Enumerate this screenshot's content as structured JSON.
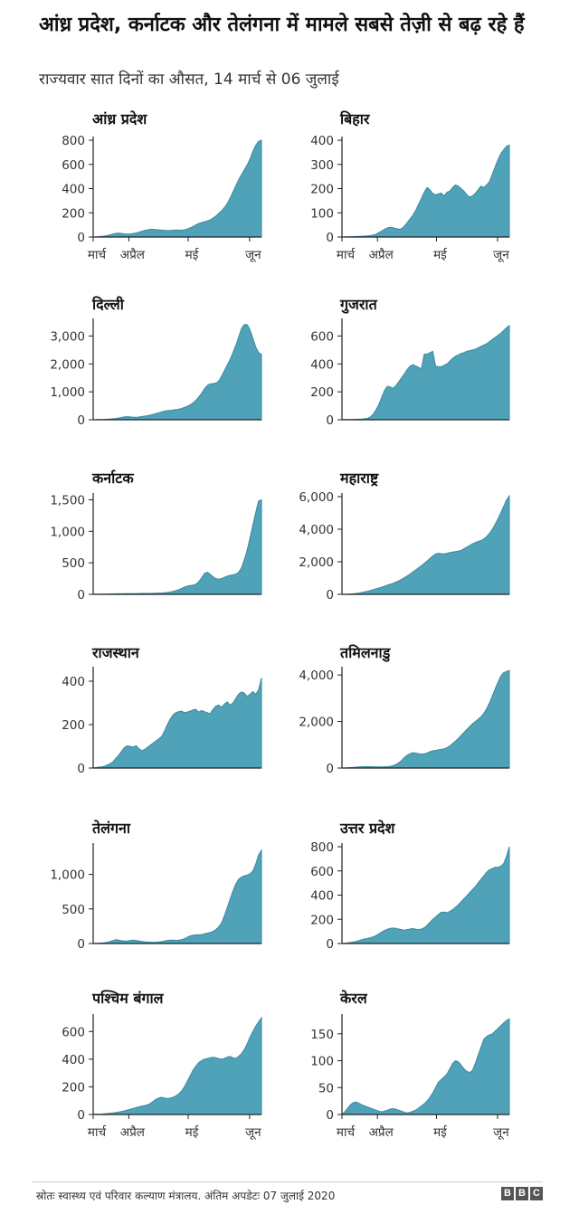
{
  "header": {
    "title": "आंध्र प्रदेश, कर्नाटक और तेलंगना में मामले सबसे तेज़ी से बढ़ रहे हैं",
    "subtitle": "राज्यवार सात दिनों का औसत, 14 मार्च से 06 जुलाई"
  },
  "footer": {
    "source": "स्रोतः स्वास्थ्य एवं परिवार कल्याण मंत्रालय. अंतिम अपडेटः 07 जुलाई 2020",
    "logo_letters": [
      "B",
      "B",
      "C"
    ]
  },
  "colors": {
    "area_fill": "#4fa2b8",
    "area_stroke": "#3a8aa1",
    "axis": "#222222"
  },
  "chart_data": [
    {
      "type": "area",
      "title": "आंध्र प्रदेश",
      "ylim": [
        0,
        800
      ],
      "yticks": [
        {
          "v": 0,
          "label": "0"
        },
        {
          "v": 200,
          "label": "200"
        },
        {
          "v": 400,
          "label": "400"
        },
        {
          "v": 600,
          "label": "600"
        },
        {
          "v": 800,
          "label": "800"
        }
      ],
      "xtick_labels": [
        {
          "day": 0,
          "label": "मार्च"
        },
        {
          "day": 18,
          "label": "अप्रैल"
        },
        {
          "day": 48,
          "label": "मई"
        },
        {
          "day": 79,
          "label": "जून"
        }
      ],
      "series": [
        0,
        1,
        3,
        5,
        8,
        12,
        18,
        25,
        30,
        33,
        30,
        26,
        24,
        25,
        28,
        32,
        38,
        45,
        52,
        58,
        62,
        64,
        62,
        60,
        58,
        56,
        54,
        53,
        55,
        57,
        58,
        56,
        58,
        62,
        70,
        80,
        92,
        105,
        115,
        122,
        128,
        135,
        145,
        160,
        178,
        200,
        222,
        250,
        285,
        330,
        380,
        430,
        480,
        520,
        560,
        600,
        650,
        710,
        760,
        790,
        800
      ]
    },
    {
      "type": "area",
      "title": "बिहार",
      "ylim": [
        0,
        400
      ],
      "yticks": [
        {
          "v": 0,
          "label": "0"
        },
        {
          "v": 100,
          "label": "100"
        },
        {
          "v": 200,
          "label": "200"
        },
        {
          "v": 300,
          "label": "300"
        },
        {
          "v": 400,
          "label": "400"
        }
      ],
      "xtick_labels": [
        {
          "day": 0,
          "label": "मार्च"
        },
        {
          "day": 18,
          "label": "अप्रैल"
        },
        {
          "day": 48,
          "label": "मई"
        },
        {
          "day": 79,
          "label": "जून"
        }
      ],
      "series": [
        0,
        0,
        1,
        1,
        2,
        2,
        3,
        3,
        4,
        5,
        6,
        8,
        12,
        18,
        25,
        32,
        38,
        40,
        38,
        35,
        32,
        34,
        45,
        60,
        75,
        90,
        110,
        135,
        160,
        185,
        205,
        195,
        180,
        175,
        178,
        182,
        170,
        185,
        190,
        205,
        215,
        210,
        200,
        190,
        175,
        165,
        170,
        180,
        195,
        210,
        205,
        215,
        230,
        260,
        290,
        320,
        345,
        360,
        375,
        380
      ]
    },
    {
      "type": "area",
      "title": "दिल्ली",
      "ylim": [
        0,
        3500
      ],
      "yticks": [
        {
          "v": 0,
          "label": "0"
        },
        {
          "v": 1000,
          "label": "1,000"
        },
        {
          "v": 2000,
          "label": "2,000"
        },
        {
          "v": 3000,
          "label": "3,000"
        }
      ],
      "xtick_labels": [],
      "series": [
        0,
        2,
        5,
        8,
        12,
        18,
        25,
        35,
        45,
        60,
        80,
        100,
        110,
        105,
        95,
        90,
        95,
        110,
        125,
        140,
        160,
        185,
        210,
        240,
        270,
        300,
        320,
        330,
        340,
        355,
        370,
        390,
        420,
        460,
        500,
        560,
        640,
        740,
        860,
        1000,
        1150,
        1250,
        1290,
        1300,
        1320,
        1420,
        1600,
        1800,
        2000,
        2200,
        2450,
        2700,
        3000,
        3300,
        3420,
        3400,
        3200,
        2900,
        2600,
        2400,
        2350
      ]
    },
    {
      "type": "area",
      "title": "गुजरात",
      "ylim": [
        0,
        700
      ],
      "yticks": [
        {
          "v": 0,
          "label": "0"
        },
        {
          "v": 200,
          "label": "200"
        },
        {
          "v": 400,
          "label": "400"
        },
        {
          "v": 600,
          "label": "600"
        }
      ],
      "xtick_labels": [],
      "series": [
        0,
        1,
        1,
        2,
        2,
        3,
        4,
        5,
        7,
        10,
        20,
        40,
        70,
        110,
        160,
        210,
        240,
        235,
        225,
        245,
        270,
        300,
        330,
        360,
        385,
        395,
        385,
        375,
        365,
        470,
        470,
        480,
        490,
        385,
        380,
        380,
        390,
        400,
        420,
        440,
        455,
        465,
        475,
        480,
        490,
        495,
        500,
        505,
        515,
        525,
        535,
        545,
        560,
        575,
        590,
        605,
        620,
        640,
        660,
        675
      ]
    },
    {
      "type": "area",
      "title": "कर्नाटक",
      "ylim": [
        0,
        1550
      ],
      "yticks": [
        {
          "v": 0,
          "label": "0"
        },
        {
          "v": 500,
          "label": "500"
        },
        {
          "v": 1000,
          "label": "1,000"
        },
        {
          "v": 1500,
          "label": "1,500"
        }
      ],
      "xtick_labels": [],
      "series": [
        0,
        1,
        2,
        3,
        4,
        5,
        6,
        7,
        8,
        8,
        9,
        10,
        11,
        12,
        12,
        13,
        13,
        14,
        14,
        15,
        15,
        16,
        18,
        20,
        22,
        25,
        30,
        38,
        48,
        60,
        75,
        95,
        115,
        130,
        140,
        145,
        160,
        200,
        260,
        330,
        350,
        320,
        280,
        250,
        240,
        250,
        270,
        290,
        300,
        310,
        320,
        350,
        420,
        550,
        700,
        900,
        1100,
        1300,
        1480,
        1500
      ]
    },
    {
      "type": "area",
      "title": "महाराष्ट्र",
      "ylim": [
        0,
        6000
      ],
      "yticks": [
        {
          "v": 0,
          "label": "0"
        },
        {
          "v": 2000,
          "label": "2,000"
        },
        {
          "v": 4000,
          "label": "4,000"
        },
        {
          "v": 6000,
          "label": "6,000"
        }
      ],
      "xtick_labels": [],
      "series": [
        0,
        5,
        10,
        20,
        35,
        55,
        80,
        110,
        150,
        190,
        240,
        290,
        340,
        390,
        440,
        500,
        560,
        620,
        680,
        750,
        830,
        920,
        1020,
        1130,
        1250,
        1380,
        1500,
        1630,
        1760,
        1900,
        2050,
        2200,
        2350,
        2480,
        2520,
        2500,
        2480,
        2520,
        2560,
        2600,
        2620,
        2650,
        2700,
        2800,
        2900,
        3000,
        3100,
        3180,
        3250,
        3300,
        3400,
        3550,
        3750,
        4000,
        4300,
        4650,
        5000,
        5400,
        5800,
        6050
      ]
    },
    {
      "type": "area",
      "title": "राजस्थान",
      "ylim": [
        0,
        450
      ],
      "yticks": [
        {
          "v": 0,
          "label": "0"
        },
        {
          "v": 200,
          "label": "200"
        },
        {
          "v": 400,
          "label": "400"
        }
      ],
      "xtick_labels": [],
      "series": [
        0,
        2,
        4,
        6,
        9,
        14,
        20,
        30,
        45,
        60,
        78,
        95,
        102,
        100,
        96,
        103,
        90,
        80,
        85,
        95,
        105,
        115,
        125,
        135,
        145,
        170,
        200,
        225,
        245,
        255,
        260,
        262,
        255,
        258,
        262,
        268,
        270,
        258,
        265,
        260,
        255,
        250,
        270,
        285,
        290,
        280,
        295,
        305,
        290,
        300,
        320,
        340,
        350,
        345,
        330,
        340,
        352,
        340,
        360,
        415
      ]
    },
    {
      "type": "area",
      "title": "तमिलनाडु",
      "ylim": [
        0,
        4200
      ],
      "yticks": [
        {
          "v": 0,
          "label": "0"
        },
        {
          "v": 2000,
          "label": "2,000"
        },
        {
          "v": 4000,
          "label": "4,000"
        }
      ],
      "xtick_labels": [],
      "series": [
        0,
        5,
        10,
        18,
        28,
        40,
        50,
        55,
        60,
        60,
        58,
        55,
        52,
        50,
        50,
        55,
        60,
        75,
        100,
        150,
        220,
        320,
        450,
        550,
        620,
        660,
        640,
        620,
        600,
        610,
        650,
        700,
        740,
        760,
        780,
        800,
        830,
        880,
        950,
        1050,
        1150,
        1270,
        1400,
        1530,
        1660,
        1780,
        1900,
        2000,
        2100,
        2200,
        2350,
        2550,
        2800,
        3100,
        3400,
        3700,
        3950,
        4100,
        4150,
        4200
      ]
    },
    {
      "type": "area",
      "title": "तेलंगना",
      "ylim": [
        0,
        1400
      ],
      "yticks": [
        {
          "v": 0,
          "label": "0"
        },
        {
          "v": 500,
          "label": "500"
        },
        {
          "v": 1000,
          "label": "1,000"
        }
      ],
      "xtick_labels": [],
      "series": [
        0,
        2,
        5,
        8,
        12,
        20,
        30,
        45,
        55,
        50,
        40,
        35,
        38,
        45,
        50,
        45,
        38,
        30,
        25,
        22,
        20,
        18,
        20,
        22,
        28,
        35,
        45,
        50,
        48,
        45,
        48,
        55,
        70,
        90,
        110,
        120,
        125,
        125,
        130,
        140,
        150,
        160,
        175,
        200,
        240,
        300,
        400,
        520,
        640,
        760,
        860,
        930,
        960,
        980,
        990,
        1010,
        1050,
        1150,
        1280,
        1350
      ]
    },
    {
      "type": "area",
      "title": "उत्तर प्रदेश",
      "ylim": [
        0,
        800
      ],
      "yticks": [
        {
          "v": 0,
          "label": "0"
        },
        {
          "v": 200,
          "label": "200"
        },
        {
          "v": 400,
          "label": "400"
        },
        {
          "v": 600,
          "label": "600"
        },
        {
          "v": 800,
          "label": "800"
        }
      ],
      "xtick_labels": [],
      "series": [
        0,
        2,
        5,
        8,
        12,
        18,
        25,
        32,
        38,
        42,
        48,
        55,
        65,
        80,
        95,
        108,
        118,
        125,
        128,
        125,
        120,
        115,
        110,
        115,
        120,
        125,
        118,
        115,
        120,
        130,
        150,
        175,
        200,
        220,
        240,
        258,
        260,
        255,
        265,
        280,
        300,
        320,
        345,
        370,
        395,
        420,
        445,
        470,
        500,
        530,
        560,
        590,
        610,
        620,
        630,
        630,
        640,
        660,
        720,
        800
      ]
    },
    {
      "type": "area",
      "title": "पश्चिम बंगाल",
      "ylim": [
        0,
        700
      ],
      "yticks": [
        {
          "v": 0,
          "label": "0"
        },
        {
          "v": 200,
          "label": "200"
        },
        {
          "v": 400,
          "label": "400"
        },
        {
          "v": 600,
          "label": "600"
        }
      ],
      "xtick_labels": [
        {
          "day": 0,
          "label": "मार्च"
        },
        {
          "day": 18,
          "label": "अप्रैल"
        },
        {
          "day": 48,
          "label": "मई"
        },
        {
          "day": 79,
          "label": "जून"
        }
      ],
      "series": [
        0,
        1,
        2,
        3,
        5,
        7,
        9,
        12,
        15,
        18,
        22,
        27,
        32,
        38,
        44,
        50,
        55,
        60,
        65,
        70,
        80,
        95,
        110,
        120,
        125,
        120,
        115,
        118,
        125,
        135,
        150,
        170,
        200,
        240,
        280,
        320,
        350,
        375,
        390,
        400,
        405,
        410,
        415,
        410,
        405,
        400,
        405,
        415,
        420,
        410,
        405,
        420,
        440,
        470,
        510,
        560,
        600,
        640,
        670,
        700
      ]
    },
    {
      "type": "area",
      "title": "केरल",
      "ylim": [
        0,
        180
      ],
      "yticks": [
        {
          "v": 0,
          "label": "0"
        },
        {
          "v": 50,
          "label": "50"
        },
        {
          "v": 100,
          "label": "100"
        },
        {
          "v": 150,
          "label": "150"
        }
      ],
      "xtick_labels": [
        {
          "day": 0,
          "label": "मार्च"
        },
        {
          "day": 18,
          "label": "अप्रैल"
        },
        {
          "day": 48,
          "label": "मई"
        },
        {
          "day": 79,
          "label": "जून"
        }
      ],
      "series": [
        0,
        5,
        12,
        18,
        22,
        23,
        21,
        18,
        16,
        14,
        12,
        10,
        8,
        6,
        5,
        6,
        8,
        10,
        11,
        10,
        8,
        6,
        4,
        3,
        4,
        6,
        8,
        12,
        16,
        20,
        25,
        32,
        40,
        50,
        60,
        65,
        70,
        75,
        85,
        95,
        100,
        98,
        92,
        85,
        80,
        78,
        82,
        95,
        110,
        125,
        140,
        145,
        148,
        150,
        155,
        160,
        165,
        170,
        175,
        178
      ]
    }
  ]
}
